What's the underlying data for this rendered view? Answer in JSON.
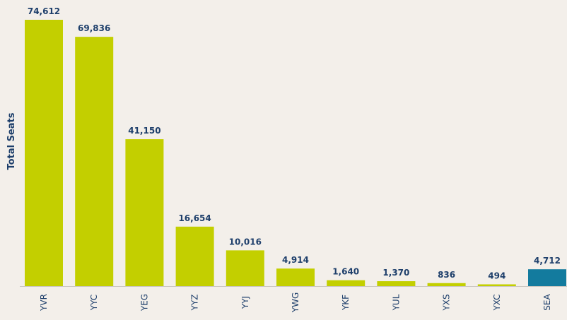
{
  "chart_data": {
    "type": "bar",
    "ylabel": "Total Seats",
    "categories": [
      "YVR",
      "YYC",
      "YEG",
      "YYZ",
      "YYJ",
      "YWG",
      "YKF",
      "YUL",
      "YXS",
      "YXC",
      "SEA"
    ],
    "values": [
      74612,
      69836,
      41150,
      16654,
      10016,
      4914,
      1640,
      1370,
      836,
      494,
      4712
    ],
    "value_labels": [
      "74,612",
      "69,836",
      "41,150",
      "16,654",
      "10,016",
      "4,914",
      "1,640",
      "1,370",
      "836",
      "494",
      "4,712"
    ],
    "bar_colors": [
      "#c3cf00",
      "#c3cf00",
      "#c3cf00",
      "#c3cf00",
      "#c3cf00",
      "#c3cf00",
      "#c3cf00",
      "#c3cf00",
      "#c3cf00",
      "#c3cf00",
      "#137b9e"
    ],
    "grid": false,
    "legend": "none"
  },
  "colors": {
    "background": "#f3efea",
    "bar_primary": "#c3cf00",
    "bar_highlight": "#137b9e",
    "label_text": "#1e3f6b",
    "axis": "#c9c5bf"
  }
}
